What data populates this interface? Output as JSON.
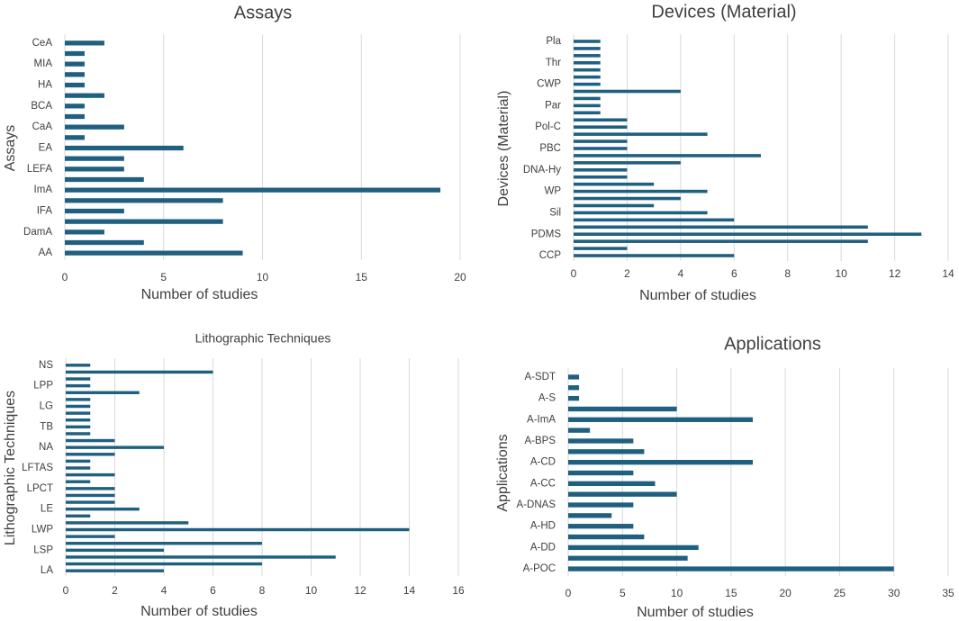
{
  "chart_data": [
    {
      "type": "bar",
      "orientation": "horizontal",
      "title": "Assays",
      "y_label": "Assays",
      "x_label": "Number of studies",
      "color": "#1f5f7f",
      "grid": true,
      "categories": [
        "CeA",
        null,
        "MIA",
        null,
        "HA",
        null,
        "BCA",
        null,
        "CaA",
        null,
        "EA",
        null,
        "LEFA",
        null,
        "ImA",
        null,
        "IFA",
        null,
        "DamA",
        null,
        "AA"
      ],
      "values": [
        2,
        1,
        1,
        1,
        1,
        2,
        1,
        1,
        3,
        1,
        6,
        3,
        3,
        4,
        19,
        8,
        3,
        8,
        2,
        4,
        9
      ],
      "xlim": [
        0,
        20
      ],
      "xticks": [
        0,
        5,
        10,
        15,
        20
      ]
    },
    {
      "type": "bar",
      "orientation": "horizontal",
      "title": "Devices (Material)",
      "y_label": "Devices (Material)",
      "x_label": "Number of studies",
      "color": "#1f5f7f",
      "grid": true,
      "categories": [
        "Pla",
        null,
        null,
        "Thr",
        null,
        null,
        "CWP",
        null,
        null,
        "Par",
        null,
        null,
        "Pol-C",
        null,
        null,
        "PBC",
        null,
        null,
        "DNA-Hy",
        null,
        null,
        "WP",
        null,
        null,
        "Sil",
        null,
        null,
        "PDMS",
        null,
        null,
        "CCP"
      ],
      "values": [
        1,
        1,
        1,
        1,
        1,
        1,
        1,
        4,
        1,
        1,
        1,
        2,
        2,
        5,
        2,
        2,
        7,
        4,
        2,
        2,
        3,
        5,
        4,
        3,
        5,
        6,
        11,
        13,
        11,
        2,
        6
      ],
      "xlim": [
        0,
        14
      ],
      "xticks": [
        0,
        2,
        4,
        6,
        8,
        10,
        12,
        14
      ]
    },
    {
      "type": "bar",
      "orientation": "horizontal",
      "title": "Lithographic Techniques",
      "y_label": "Lithographic Techniques",
      "x_label": "Number of studies",
      "color": "#1f5f7f",
      "grid": true,
      "categories": [
        "NS",
        null,
        null,
        "LPP",
        null,
        null,
        "LG",
        null,
        null,
        "TB",
        null,
        null,
        "NA",
        null,
        null,
        "LFTAS",
        null,
        null,
        "LPCT",
        null,
        null,
        "LE",
        null,
        null,
        "LWP",
        null,
        null,
        "LSP",
        null,
        null,
        "LA"
      ],
      "values": [
        1,
        6,
        1,
        1,
        3,
        1,
        1,
        1,
        1,
        1,
        1,
        2,
        4,
        2,
        1,
        1,
        2,
        1,
        2,
        2,
        2,
        3,
        1,
        5,
        14,
        2,
        8,
        4,
        11,
        8,
        4
      ],
      "xlim": [
        0,
        16
      ],
      "xticks": [
        0,
        2,
        4,
        6,
        8,
        10,
        12,
        14,
        16
      ]
    },
    {
      "type": "bar",
      "orientation": "horizontal",
      "title": "Applications",
      "y_label": "Applications",
      "x_label": "Number of studies",
      "color": "#1f5f7f",
      "grid": true,
      "categories": [
        "A-SDT",
        null,
        "A-S",
        null,
        "A-ImA",
        null,
        "A-BPS",
        null,
        "A-CD",
        null,
        "A-CC",
        null,
        "A-DNAS",
        null,
        "A-HD",
        null,
        "A-DD",
        null,
        "A-POC"
      ],
      "values": [
        1,
        1,
        1,
        10,
        17,
        2,
        6,
        7,
        17,
        6,
        8,
        10,
        6,
        4,
        6,
        7,
        12,
        11,
        30
      ],
      "xlim": [
        0,
        35
      ],
      "xticks": [
        0,
        5,
        10,
        15,
        20,
        25,
        30,
        35
      ]
    }
  ]
}
